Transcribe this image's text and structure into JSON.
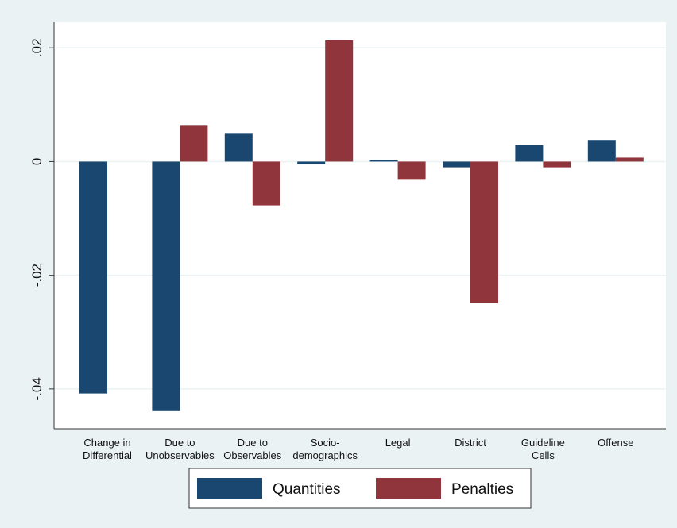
{
  "chart_data": {
    "type": "bar",
    "categories": [
      "Change in\nDifferential",
      "Due to\nUnobservables",
      "Due to\nObservables",
      "Socio-\ndemographics",
      "Legal",
      "District",
      "Guideline\nCells",
      "Offense"
    ],
    "series": [
      {
        "name": "Quantities",
        "color": "#1a476f",
        "values": [
          -0.0408,
          -0.0439,
          0.0049,
          -0.0005,
          0.0002,
          -0.001,
          0.0029,
          0.0038
        ]
      },
      {
        "name": "Penalties",
        "color": "#90353b",
        "values": [
          null,
          0.0063,
          -0.0077,
          0.0213,
          -0.0032,
          -0.0249,
          -0.001,
          0.0007
        ]
      }
    ],
    "ylim": [
      -0.047,
      0.0245
    ],
    "yticks": [
      {
        "value": -0.04,
        "label": "-.04"
      },
      {
        "value": -0.02,
        "label": "-.02"
      },
      0,
      {
        "value": 0.02,
        "label": ".02"
      }
    ],
    "grid": true,
    "legend": "bottom"
  }
}
